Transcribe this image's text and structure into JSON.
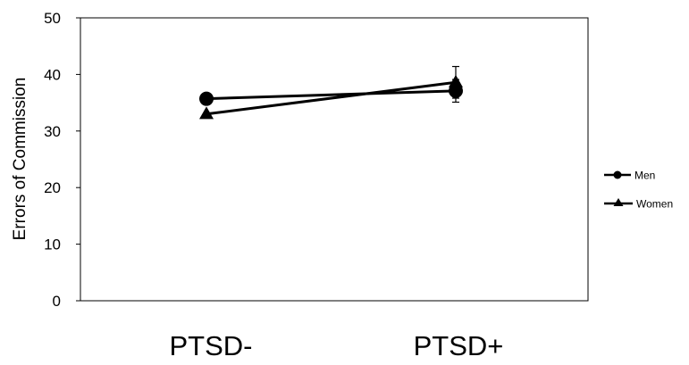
{
  "chart_data": {
    "type": "line",
    "title": "",
    "xlabel": "",
    "ylabel": "Errors of Commission",
    "categories": [
      "PTSD-",
      "PTSD+"
    ],
    "ylim": [
      0,
      50
    ],
    "yticks": [
      0,
      10,
      20,
      30,
      40,
      50
    ],
    "grid": false,
    "legend_position": "right",
    "series": [
      {
        "name": "Men",
        "marker": "circle",
        "color": "#000000",
        "values": [
          35.7,
          37.1
        ],
        "errors": [
          null,
          2.0
        ]
      },
      {
        "name": "Women",
        "marker": "triangle",
        "color": "#000000",
        "values": [
          33.0,
          38.6
        ],
        "errors": [
          null,
          2.8
        ]
      }
    ]
  }
}
